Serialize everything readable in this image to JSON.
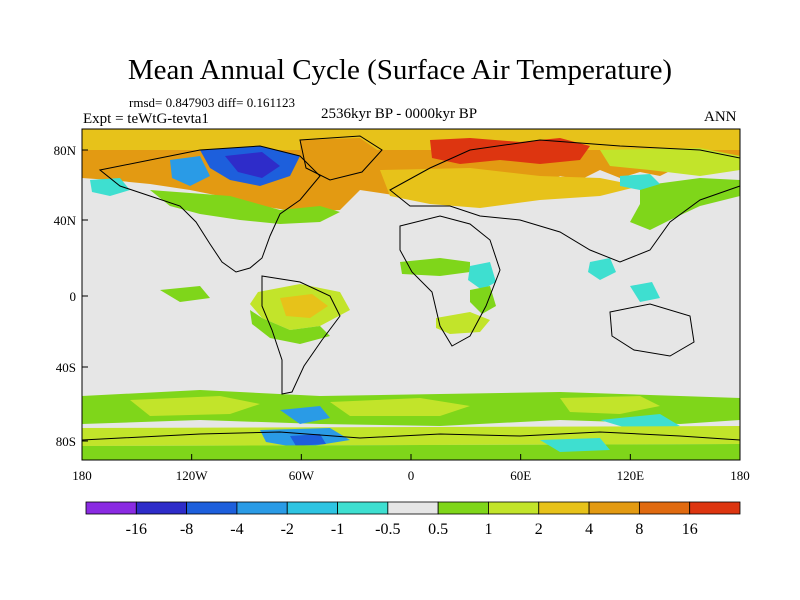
{
  "title": "Mean Annual Cycle (Surface Air Temperature)",
  "stats": "rmsd= 0.847903 diff= 0.161123",
  "experiment": "Expt = teWtG-tevta1",
  "period": "2536kyr BP - 0000kyr BP",
  "season": "ANN",
  "lat_labels": [
    "80N",
    "40N",
    "0",
    "40S",
    "80S"
  ],
  "lon_labels": [
    "180",
    "120W",
    "60W",
    "0",
    "60E",
    "120E",
    "180"
  ],
  "colorbar": {
    "labels": [
      "-16",
      "-8",
      "-4",
      "-2",
      "-1",
      "-0.5",
      "0.5",
      "1",
      "2",
      "4",
      "8",
      "16"
    ],
    "colors": [
      "#8a2be2",
      "#2e2cc9",
      "#1d5fdc",
      "#2a9be6",
      "#2ec4e2",
      "#3edfd0",
      "#e6e6e6",
      "#7fd61a",
      "#c2e42a",
      "#e7c21a",
      "#e39a12",
      "#e06a10",
      "#dd3510"
    ]
  },
  "map_colors": {
    "background": "#e6e6e6",
    "land_outline": "#000000",
    "warm_light": "#7fd61a",
    "warm_mid": "#c2e42a",
    "warm_orange": "#e7c21a",
    "warm_dark": "#e39a12",
    "hot": "#dd3510",
    "cool_light": "#3edfd0",
    "cool_mid": "#2a9be6",
    "cool_dark": "#1d5fdc",
    "cold": "#2e2cc9"
  }
}
